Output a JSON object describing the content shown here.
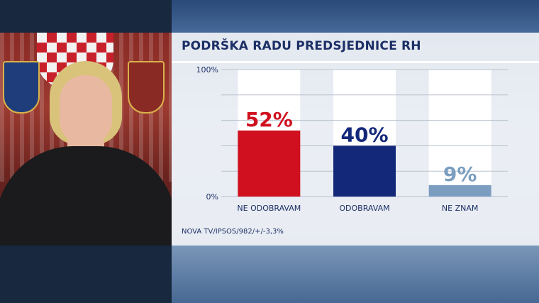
{
  "title": "PODRŠKA RADU PREDSJEDNICE RH",
  "source": "NOVA TV/IPSOS/982/+/-3,3%",
  "chart_data": {
    "type": "bar",
    "title": "PODRŠKA RADU PREDSJEDNICE RH",
    "categories": [
      "NE ODOBRAVAM",
      "ODOBRAVAM",
      "NE ZNAM"
    ],
    "values": [
      52,
      40,
      9
    ],
    "value_labels": [
      "52%",
      "40%",
      "9%"
    ],
    "colors": [
      "#d0101f",
      "#14287a",
      "#7b9ec0"
    ],
    "ylim": [
      0,
      100
    ],
    "yticks": [
      "100%",
      "0%"
    ],
    "xlabel": "",
    "ylabel": "",
    "grid": true,
    "legend": "none"
  }
}
